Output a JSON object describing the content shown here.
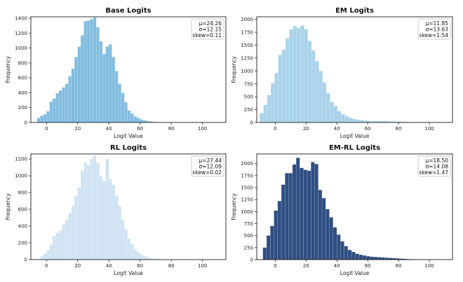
{
  "chart_data": [
    {
      "type": "bar",
      "title": "Base Logits",
      "xlabel": "Logit Value",
      "ylabel": "Frequency",
      "xlim": [
        -10,
        115
      ],
      "ylim": [
        0,
        1420
      ],
      "xticks": [
        "0",
        "20",
        "40",
        "60",
        "80",
        "100"
      ],
      "yticks": [
        "0",
        "200",
        "400",
        "600",
        "800",
        "1000",
        "1200",
        "1400"
      ],
      "color": "#82bde0",
      "stats": [
        "μ=24.26",
        "σ=12.15",
        "skew=0.11"
      ],
      "bin_start": -6,
      "bin_width": 2,
      "values": [
        60,
        90,
        110,
        150,
        280,
        320,
        390,
        430,
        470,
        520,
        620,
        720,
        880,
        1020,
        1170,
        1360,
        1370,
        1390,
        1410,
        1280,
        1090,
        920,
        1020,
        1050,
        880,
        690,
        520,
        400,
        270,
        160,
        120,
        80,
        60,
        40,
        30,
        20,
        12,
        8,
        5,
        3
      ]
    },
    {
      "type": "bar",
      "title": "EM Logits",
      "xlabel": "Logit Value",
      "ylabel": "Frequency",
      "xlim": [
        -12,
        115
      ],
      "ylim": [
        0,
        2050
      ],
      "xticks": [
        "0",
        "20",
        "40",
        "60",
        "80",
        "100"
      ],
      "yticks": [
        "0",
        "250",
        "500",
        "750",
        "1000",
        "1250",
        "1500",
        "1750",
        "2000"
      ],
      "color": "#a9d3ea",
      "stats": [
        "μ=11.85",
        "σ=13.63",
        "skew=1.54"
      ],
      "bin_start": -10,
      "bin_width": 2.4,
      "values": [
        180,
        340,
        530,
        760,
        960,
        1310,
        1410,
        1640,
        1810,
        1870,
        1830,
        1880,
        1810,
        1580,
        1400,
        1190,
        1000,
        780,
        570,
        400,
        320,
        220,
        160,
        120,
        90,
        70,
        55,
        45,
        35,
        30,
        28,
        25,
        30,
        32,
        28,
        22,
        18,
        15,
        12,
        10,
        8,
        6,
        5,
        4,
        3,
        2
      ]
    },
    {
      "type": "bar",
      "title": "RL Logits",
      "xlabel": "Logit Value",
      "ylabel": "Frequency",
      "xlim": [
        -10,
        115
      ],
      "ylim": [
        0,
        1260
      ],
      "xticks": [
        "0",
        "20",
        "40",
        "60",
        "80",
        "100"
      ],
      "yticks": [
        "0",
        "200",
        "400",
        "600",
        "800",
        "1000",
        "1200"
      ],
      "color": "#cfe3f3",
      "stats": [
        "μ=27.44",
        "σ=12.09",
        "skew=0.02"
      ],
      "bin_start": -4,
      "bin_width": 2,
      "values": [
        40,
        70,
        110,
        180,
        280,
        320,
        340,
        420,
        470,
        560,
        640,
        760,
        860,
        1060,
        1160,
        1130,
        1200,
        1240,
        1150,
        1000,
        940,
        1200,
        960,
        890,
        760,
        640,
        480,
        360,
        250,
        180,
        120,
        90,
        60,
        40,
        30,
        20,
        12,
        8,
        5,
        3
      ]
    },
    {
      "type": "bar",
      "title": "EM-RL Logits",
      "xlabel": "Logit Value",
      "ylabel": "Frequency",
      "xlim": [
        -12,
        115
      ],
      "ylim": [
        0,
        2200
      ],
      "xticks": [
        "0",
        "20",
        "40",
        "60",
        "80",
        "100"
      ],
      "yticks": [
        "0",
        "250",
        "500",
        "750",
        "1000",
        "1250",
        "1500",
        "1750",
        "2000"
      ],
      "color": "#2f4f82",
      "stats": [
        "μ=18.50",
        "σ=14.08",
        "skew=1.47"
      ],
      "bin_start": -8,
      "bin_width": 2.4,
      "values": [
        250,
        500,
        700,
        1020,
        1220,
        1560,
        1800,
        1800,
        1980,
        2120,
        1910,
        1870,
        1850,
        2030,
        1990,
        1450,
        1280,
        1050,
        880,
        670,
        520,
        380,
        280,
        200,
        160,
        120,
        100,
        85,
        70,
        60,
        55,
        50,
        45,
        40,
        35,
        30,
        25,
        20,
        15,
        10,
        8,
        6,
        4,
        3
      ]
    }
  ]
}
